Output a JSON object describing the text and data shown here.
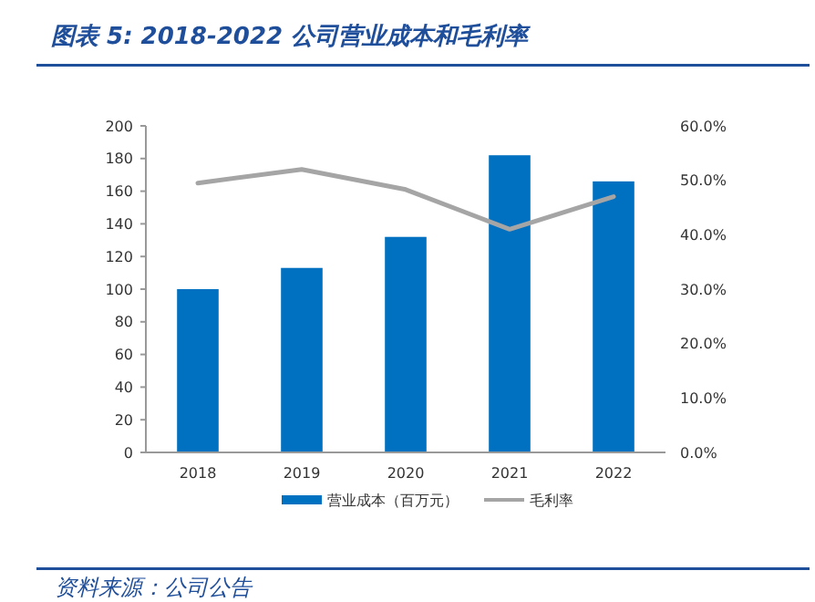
{
  "chart_data": {
    "type": "bar",
    "title": "图表 5:  2018-2022 公司营业成本和毛利率",
    "categories": [
      "2018",
      "2019",
      "2020",
      "2021",
      "2022"
    ],
    "series": [
      {
        "name": "营业成本（百万元）",
        "color": "#0070c0",
        "values": [
          100,
          113,
          132,
          182,
          166
        ]
      },
      {
        "name": "毛利率",
        "type": "line",
        "axis": "y2",
        "color": "#a5a5a5",
        "values": [
          49.5,
          52.0,
          48.3,
          41.0,
          47.0
        ]
      }
    ],
    "ylim": [
      0,
      200
    ],
    "yticks": [
      0,
      20,
      40,
      60,
      80,
      100,
      120,
      140,
      160,
      180,
      200
    ],
    "y2lim": [
      0,
      60
    ],
    "y2ticks": [
      {
        "value": 0,
        "label": "0.0%"
      },
      {
        "value": 10,
        "label": "10.0%"
      },
      {
        "value": 20,
        "label": "20.0%"
      },
      {
        "value": 30,
        "label": "30.0%"
      },
      {
        "value": 40,
        "label": "40.0%"
      },
      {
        "value": 50,
        "label": "50.0%"
      },
      {
        "value": 60,
        "label": "60.0%"
      }
    ],
    "legend": "bottom",
    "grid": false,
    "annotations": [
      "资料来源：公司公告"
    ]
  }
}
